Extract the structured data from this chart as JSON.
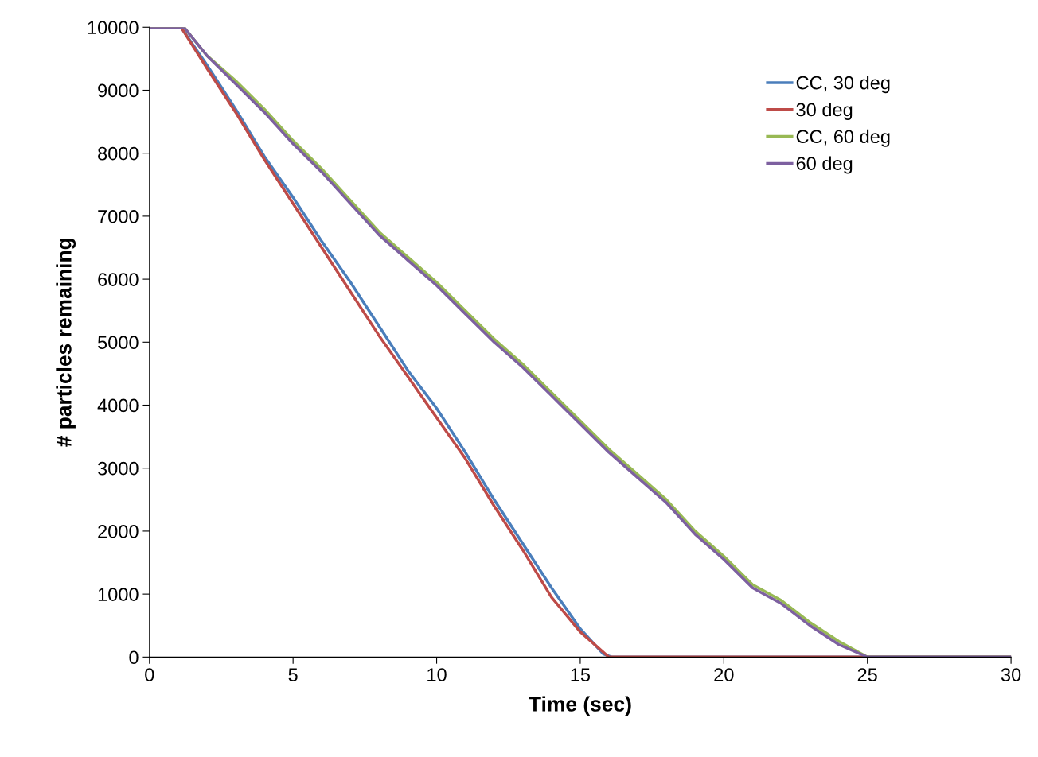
{
  "chart_data": {
    "type": "line",
    "xlabel": "Time (sec)",
    "ylabel": "# particles remaining",
    "xlim": [
      0,
      30
    ],
    "xticks": [
      0,
      5,
      10,
      15,
      20,
      25,
      30
    ],
    "ylim": [
      0,
      10000
    ],
    "yticks": [
      0,
      1000,
      2000,
      3000,
      4000,
      5000,
      6000,
      7000,
      8000,
      9000,
      10000
    ],
    "grid": false,
    "legend": "top right",
    "marker": "none",
    "line_style": "solid",
    "series": [
      {
        "name": "CC, 30 deg",
        "color": "#4a7ebb",
        "x": [
          0,
          1.1,
          2,
          3,
          4,
          5,
          6,
          7,
          8,
          9,
          10,
          11,
          12,
          13,
          14,
          15,
          15.8,
          16.1,
          30
        ],
        "values": [
          10000,
          10000,
          9400,
          8700,
          7950,
          7300,
          6600,
          5950,
          5250,
          4550,
          3950,
          3250,
          2500,
          1800,
          1100,
          450,
          50,
          0,
          0
        ]
      },
      {
        "name": "30 deg",
        "color": "#be4b48",
        "x": [
          0,
          1.1,
          2,
          3,
          4,
          5,
          6,
          7,
          8,
          9,
          10,
          11,
          12,
          13,
          14,
          15,
          16,
          30
        ],
        "values": [
          10000,
          10000,
          9350,
          8650,
          7900,
          7200,
          6500,
          5800,
          5100,
          4450,
          3800,
          3150,
          2400,
          1700,
          950,
          400,
          0,
          0
        ]
      },
      {
        "name": "CC, 60 deg",
        "color": "#98b954",
        "x": [
          0,
          1.2,
          2,
          3,
          4,
          5,
          6,
          7,
          8,
          9,
          10,
          11,
          12,
          13,
          14,
          15,
          16,
          17,
          18,
          19,
          20,
          21,
          22,
          23,
          24,
          25,
          30
        ],
        "values": [
          10000,
          10000,
          9550,
          9150,
          8700,
          8200,
          7750,
          7250,
          6750,
          6350,
          5950,
          5500,
          5050,
          4650,
          4200,
          3750,
          3300,
          2900,
          2500,
          2000,
          1600,
          1150,
          900,
          550,
          250,
          0,
          0
        ]
      },
      {
        "name": "60 deg",
        "color": "#7d60a0",
        "x": [
          0,
          1.2,
          2,
          3,
          4,
          5,
          6,
          7,
          8,
          9,
          10,
          11,
          12,
          13,
          14,
          15,
          16,
          17,
          18,
          19,
          20,
          21,
          22,
          23,
          24,
          25,
          30
        ],
        "values": [
          10000,
          10000,
          9550,
          9100,
          8650,
          8150,
          7700,
          7200,
          6700,
          6300,
          5900,
          5450,
          5000,
          4600,
          4150,
          3700,
          3250,
          2850,
          2450,
          1950,
          1550,
          1100,
          850,
          500,
          200,
          0,
          0
        ]
      }
    ]
  }
}
